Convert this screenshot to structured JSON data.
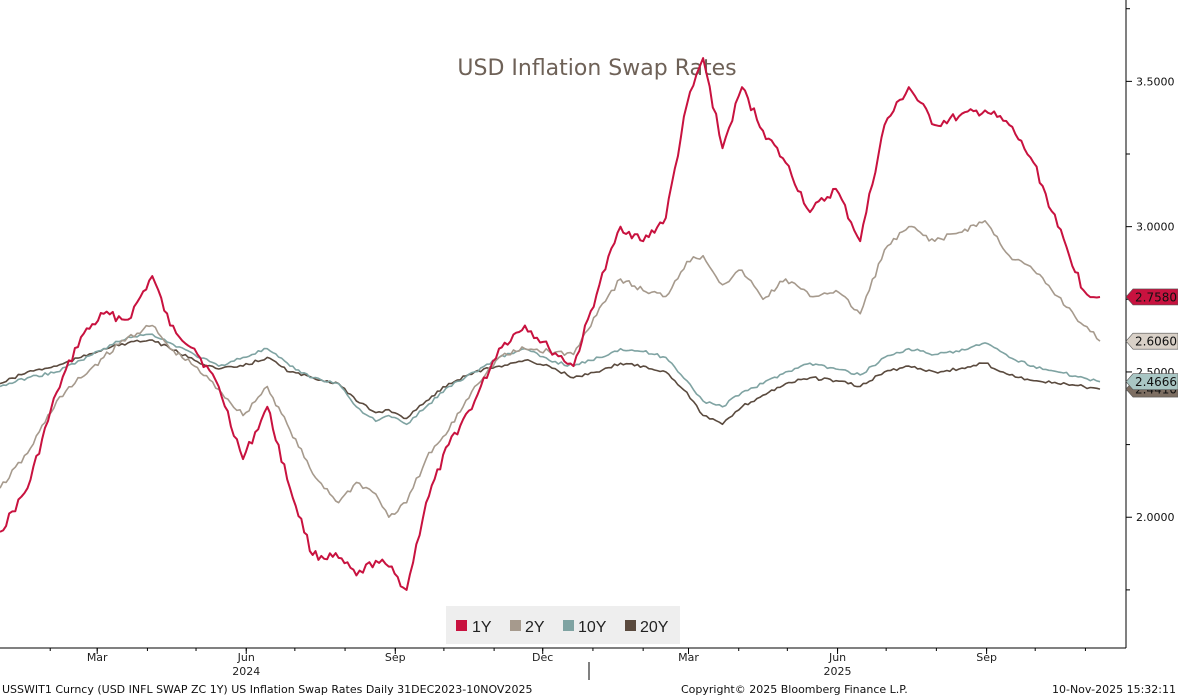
{
  "chart_data": {
    "type": "line",
    "title": "USD Inflation Swap Rates",
    "ylim": [
      1.55,
      3.78
    ],
    "yticks": [
      {
        "value": 3.5,
        "label": "3.5000"
      },
      {
        "value": 3.0,
        "label": "3.0000"
      },
      {
        "value": 2.5,
        "label": "2.5000"
      },
      {
        "value": 2.0,
        "label": "2.0000"
      }
    ],
    "x_range": [
      "2024-01-01",
      "2025-11-10"
    ],
    "xticks": [
      {
        "date": "2024-03-01",
        "label": "Mar"
      },
      {
        "date": "2024-06-01",
        "label": "Jun"
      },
      {
        "date": "2024-09-01",
        "label": "Sep"
      },
      {
        "date": "2024-12-01",
        "label": "Dec"
      },
      {
        "date": "2025-03-01",
        "label": "Mar"
      },
      {
        "date": "2025-06-01",
        "label": "Jun"
      },
      {
        "date": "2025-09-01",
        "label": "Sep"
      }
    ],
    "year_labels": [
      {
        "date": "2024-06-01",
        "label": "2024"
      },
      {
        "date": "2025-06-01",
        "label": "2025"
      }
    ],
    "legend_position": "bottom-center",
    "grid": false,
    "series": [
      {
        "name": "1Y",
        "color": "#c8123f",
        "end_label": "2.7580",
        "dates": [
          "2024-01-01",
          "2024-01-18",
          "2024-02-05",
          "2024-02-20",
          "2024-03-05",
          "2024-03-20",
          "2024-04-04",
          "2024-04-15",
          "2024-04-30",
          "2024-05-15",
          "2024-05-30",
          "2024-06-14",
          "2024-06-28",
          "2024-07-12",
          "2024-07-28",
          "2024-08-08",
          "2024-08-20",
          "2024-08-28",
          "2024-09-08",
          "2024-09-20",
          "2024-10-04",
          "2024-10-20",
          "2024-11-04",
          "2024-11-20",
          "2024-12-05",
          "2024-12-20",
          "2025-01-05",
          "2025-01-18",
          "2025-02-01",
          "2025-02-15",
          "2025-02-28",
          "2025-03-10",
          "2025-03-22",
          "2025-04-03",
          "2025-04-16",
          "2025-04-30",
          "2025-05-15",
          "2025-05-31",
          "2025-06-15",
          "2025-06-30",
          "2025-07-15",
          "2025-07-31",
          "2025-08-15",
          "2025-08-31",
          "2025-09-15",
          "2025-09-30",
          "2025-10-15",
          "2025-10-31",
          "2025-11-10"
        ],
        "values": [
          1.95,
          2.1,
          2.43,
          2.62,
          2.7,
          2.68,
          2.83,
          2.66,
          2.58,
          2.45,
          2.2,
          2.38,
          2.1,
          1.87,
          1.86,
          1.8,
          1.85,
          1.83,
          1.75,
          2.05,
          2.25,
          2.4,
          2.58,
          2.66,
          2.58,
          2.52,
          2.8,
          3.0,
          2.95,
          3.03,
          3.42,
          3.58,
          3.27,
          3.48,
          3.33,
          3.22,
          3.05,
          3.13,
          2.95,
          3.35,
          3.48,
          3.35,
          3.38,
          3.4,
          3.35,
          3.22,
          3.0,
          2.78,
          2.758
        ]
      },
      {
        "name": "2Y",
        "color": "#a69a8d",
        "end_label": "2.6060",
        "dates": [
          "2024-01-01",
          "2024-01-18",
          "2024-02-05",
          "2024-02-20",
          "2024-03-05",
          "2024-03-20",
          "2024-04-04",
          "2024-04-15",
          "2024-04-30",
          "2024-05-15",
          "2024-05-30",
          "2024-06-14",
          "2024-06-28",
          "2024-07-12",
          "2024-07-28",
          "2024-08-08",
          "2024-08-20",
          "2024-08-28",
          "2024-09-08",
          "2024-09-20",
          "2024-10-04",
          "2024-10-20",
          "2024-11-04",
          "2024-11-20",
          "2024-12-05",
          "2024-12-20",
          "2025-01-05",
          "2025-01-18",
          "2025-02-01",
          "2025-02-15",
          "2025-02-28",
          "2025-03-10",
          "2025-03-22",
          "2025-04-03",
          "2025-04-16",
          "2025-04-30",
          "2025-05-15",
          "2025-05-31",
          "2025-06-15",
          "2025-06-30",
          "2025-07-15",
          "2025-07-31",
          "2025-08-15",
          "2025-08-31",
          "2025-09-15",
          "2025-09-30",
          "2025-10-15",
          "2025-10-31",
          "2025-11-10"
        ],
        "values": [
          2.1,
          2.22,
          2.4,
          2.48,
          2.55,
          2.62,
          2.66,
          2.58,
          2.52,
          2.44,
          2.35,
          2.45,
          2.3,
          2.15,
          2.05,
          2.12,
          2.08,
          2.0,
          2.05,
          2.2,
          2.3,
          2.45,
          2.55,
          2.58,
          2.57,
          2.56,
          2.72,
          2.82,
          2.78,
          2.76,
          2.88,
          2.9,
          2.8,
          2.85,
          2.75,
          2.82,
          2.76,
          2.78,
          2.7,
          2.92,
          3.0,
          2.95,
          2.98,
          3.02,
          2.9,
          2.85,
          2.76,
          2.66,
          2.606
        ]
      },
      {
        "name": "10Y",
        "color": "#7fa3a2",
        "end_label": "2.4666",
        "dates": [
          "2024-01-01",
          "2024-01-18",
          "2024-02-05",
          "2024-02-20",
          "2024-03-05",
          "2024-03-20",
          "2024-04-04",
          "2024-04-15",
          "2024-04-30",
          "2024-05-15",
          "2024-05-30",
          "2024-06-14",
          "2024-06-28",
          "2024-07-12",
          "2024-07-28",
          "2024-08-08",
          "2024-08-20",
          "2024-08-28",
          "2024-09-08",
          "2024-09-20",
          "2024-10-04",
          "2024-10-20",
          "2024-11-04",
          "2024-11-20",
          "2024-12-05",
          "2024-12-20",
          "2025-01-05",
          "2025-01-18",
          "2025-02-01",
          "2025-02-15",
          "2025-02-28",
          "2025-03-10",
          "2025-03-22",
          "2025-04-03",
          "2025-04-16",
          "2025-04-30",
          "2025-05-15",
          "2025-05-31",
          "2025-06-15",
          "2025-06-30",
          "2025-07-15",
          "2025-07-31",
          "2025-08-15",
          "2025-08-31",
          "2025-09-15",
          "2025-09-30",
          "2025-10-15",
          "2025-10-31",
          "2025-11-10"
        ],
        "values": [
          2.45,
          2.48,
          2.5,
          2.54,
          2.58,
          2.62,
          2.63,
          2.6,
          2.56,
          2.52,
          2.55,
          2.58,
          2.52,
          2.48,
          2.46,
          2.38,
          2.33,
          2.35,
          2.32,
          2.38,
          2.45,
          2.5,
          2.55,
          2.58,
          2.54,
          2.52,
          2.55,
          2.58,
          2.57,
          2.55,
          2.47,
          2.4,
          2.38,
          2.43,
          2.46,
          2.5,
          2.53,
          2.51,
          2.49,
          2.55,
          2.58,
          2.56,
          2.57,
          2.6,
          2.55,
          2.52,
          2.5,
          2.48,
          2.4666
        ]
      },
      {
        "name": "20Y",
        "color": "#5a4a3e",
        "end_label": "2.4410",
        "dates": [
          "2024-01-01",
          "2024-01-18",
          "2024-02-05",
          "2024-02-20",
          "2024-03-05",
          "2024-03-20",
          "2024-04-04",
          "2024-04-15",
          "2024-04-30",
          "2024-05-15",
          "2024-05-30",
          "2024-06-14",
          "2024-06-28",
          "2024-07-12",
          "2024-07-28",
          "2024-08-08",
          "2024-08-20",
          "2024-08-28",
          "2024-09-08",
          "2024-09-20",
          "2024-10-04",
          "2024-10-20",
          "2024-11-04",
          "2024-11-20",
          "2024-12-05",
          "2024-12-20",
          "2025-01-05",
          "2025-01-18",
          "2025-02-01",
          "2025-02-15",
          "2025-02-28",
          "2025-03-10",
          "2025-03-22",
          "2025-04-03",
          "2025-04-16",
          "2025-04-30",
          "2025-05-15",
          "2025-05-31",
          "2025-06-15",
          "2025-06-30",
          "2025-07-15",
          "2025-07-31",
          "2025-08-15",
          "2025-08-31",
          "2025-09-15",
          "2025-09-30",
          "2025-10-15",
          "2025-10-31",
          "2025-11-10"
        ],
        "values": [
          2.46,
          2.5,
          2.52,
          2.55,
          2.58,
          2.6,
          2.61,
          2.58,
          2.54,
          2.51,
          2.52,
          2.55,
          2.5,
          2.48,
          2.46,
          2.4,
          2.36,
          2.37,
          2.34,
          2.4,
          2.46,
          2.5,
          2.52,
          2.54,
          2.52,
          2.48,
          2.5,
          2.53,
          2.52,
          2.5,
          2.43,
          2.35,
          2.32,
          2.38,
          2.42,
          2.46,
          2.48,
          2.47,
          2.45,
          2.5,
          2.52,
          2.5,
          2.51,
          2.53,
          2.49,
          2.47,
          2.46,
          2.45,
          2.441
        ]
      }
    ]
  },
  "footer": {
    "left": "USSWIT1 Curncy (USD INFL SWAP ZC 1Y) US Inflation Swap Rates Daily 31DEC2023-10NOV2025",
    "center": "Copyright© 2025 Bloomberg Finance L.P.",
    "right": "10-Nov-2025 15:32:11"
  }
}
